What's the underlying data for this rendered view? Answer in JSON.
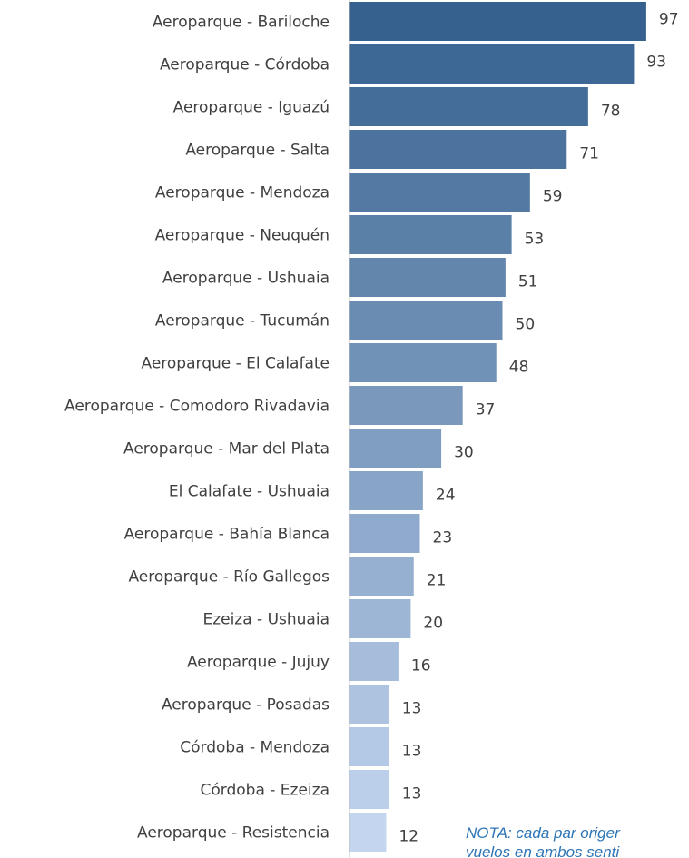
{
  "chart_data": {
    "type": "bar",
    "orientation": "horizontal",
    "categories": [
      "Aeroparque - Bariloche",
      "Aeroparque - Córdoba",
      "Aeroparque - Iguazú",
      "Aeroparque - Salta",
      "Aeroparque - Mendoza",
      "Aeroparque - Neuquén",
      "Aeroparque - Ushuaia",
      "Aeroparque - Tucumán",
      "Aeroparque - El Calafate",
      "Aeroparque - Comodoro Rivadavia",
      "Aeroparque - Mar del Plata",
      "El Calafate - Ushuaia",
      "Aeroparque - Bahía Blanca",
      "Aeroparque - Río Gallegos",
      "Ezeiza - Ushuaia",
      "Aeroparque - Jujuy",
      "Aeroparque - Posadas",
      "Córdoba - Mendoza",
      "Córdoba - Ezeiza",
      "Aeroparque - Resistencia"
    ],
    "values": [
      97,
      93,
      78,
      71,
      59,
      53,
      51,
      50,
      48,
      37,
      30,
      24,
      23,
      21,
      20,
      16,
      13,
      13,
      13,
      12
    ],
    "title": "",
    "xlabel": "",
    "ylabel": "",
    "xlim": [
      0,
      100
    ],
    "grid": false,
    "legend": "none",
    "data_labels": true
  },
  "colors": {
    "bar_dark": "#36618f",
    "bar_light": "#c3d5ef",
    "axis": "#bfbfbf",
    "text": "#404040",
    "note": "#2e75b6"
  },
  "note": {
    "line1": "NOTA: cada par origer",
    "line2": "vuelos en ambos senti"
  }
}
